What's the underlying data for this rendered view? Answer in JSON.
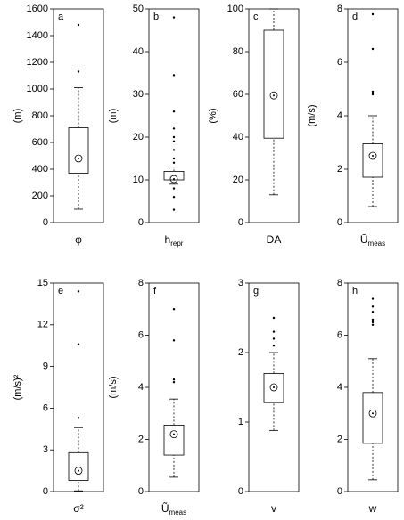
{
  "chart_data": [
    {
      "type": "box",
      "panel": "a",
      "ylabel": "(m)",
      "xlabel": "φ",
      "ylim": [
        0,
        1600
      ],
      "yticks": [
        0,
        200,
        400,
        600,
        800,
        1000,
        1200,
        1400,
        1600
      ],
      "whisker_low": 100,
      "q1": 370,
      "median": 480,
      "q3": 710,
      "whisker_high": 1010,
      "outliers": [
        1130,
        1480
      ]
    },
    {
      "type": "box",
      "panel": "b",
      "ylabel": "(m)",
      "xlabel": "h",
      "xlabel_sub": "repr",
      "ylim": [
        0,
        50
      ],
      "yticks": [
        0,
        10,
        20,
        30,
        40,
        50
      ],
      "whisker_low": 9,
      "q1": 10,
      "median": 10.2,
      "q3": 12,
      "whisker_high": 13,
      "outliers": [
        3,
        6,
        8,
        14,
        15,
        17,
        19,
        20,
        22,
        26,
        34.5,
        48
      ]
    },
    {
      "type": "box",
      "panel": "c",
      "ylabel": "(%)",
      "xlabel": "DA",
      "ylim": [
        0,
        100
      ],
      "yticks": [
        0,
        20,
        40,
        60,
        80,
        100
      ],
      "whisker_low": 13,
      "q1": 39.5,
      "median": 59.5,
      "q3": 90,
      "whisker_high": 100,
      "outliers": []
    },
    {
      "type": "box",
      "panel": "d",
      "ylabel": "(m/s)",
      "xlabel": "Ū",
      "xlabel_sub": "meas",
      "ylim": [
        0,
        8
      ],
      "yticks": [
        0,
        2,
        4,
        6,
        8
      ],
      "whisker_low": 0.6,
      "q1": 1.7,
      "median": 2.5,
      "q3": 2.95,
      "whisker_high": 4.0,
      "outliers": [
        4.8,
        4.9,
        6.5,
        7.8
      ]
    },
    {
      "type": "box",
      "panel": "e",
      "ylabel": "(m/s)²",
      "xlabel": "σ²",
      "ylim": [
        0,
        15
      ],
      "yticks": [
        0,
        3,
        6,
        9,
        12,
        15
      ],
      "whisker_low": 0.05,
      "q1": 0.8,
      "median": 1.5,
      "q3": 2.8,
      "whisker_high": 4.6,
      "outliers": [
        5.3,
        10.6,
        14.4
      ]
    },
    {
      "type": "box",
      "panel": "f",
      "ylabel": "(m/s)",
      "xlabel": "Ũ",
      "xlabel_sub": "meas",
      "ylim": [
        0,
        8
      ],
      "yticks": [
        0,
        2,
        4,
        6,
        8
      ],
      "whisker_low": 0.55,
      "q1": 1.4,
      "median": 2.2,
      "q3": 2.55,
      "whisker_high": 3.55,
      "outliers": [
        4.2,
        4.3,
        5.8,
        7.0
      ]
    },
    {
      "type": "box",
      "panel": "g",
      "xlabel": "v",
      "ylim": [
        0,
        3
      ],
      "yticks": [
        0,
        1,
        2,
        3
      ],
      "whisker_low": 0.88,
      "q1": 1.28,
      "median": 1.5,
      "q3": 1.7,
      "whisker_high": 2.0,
      "outliers": [
        2.1,
        2.2,
        2.3,
        2.5
      ]
    },
    {
      "type": "box",
      "panel": "h",
      "xlabel": "w",
      "ylim": [
        0,
        8
      ],
      "yticks": [
        0,
        2,
        4,
        6,
        8
      ],
      "whisker_low": 0.45,
      "q1": 1.85,
      "median": 3.0,
      "q3": 3.8,
      "whisker_high": 5.1,
      "outliers": [
        6.4,
        6.5,
        6.6,
        6.9,
        7.1,
        7.4
      ]
    }
  ]
}
